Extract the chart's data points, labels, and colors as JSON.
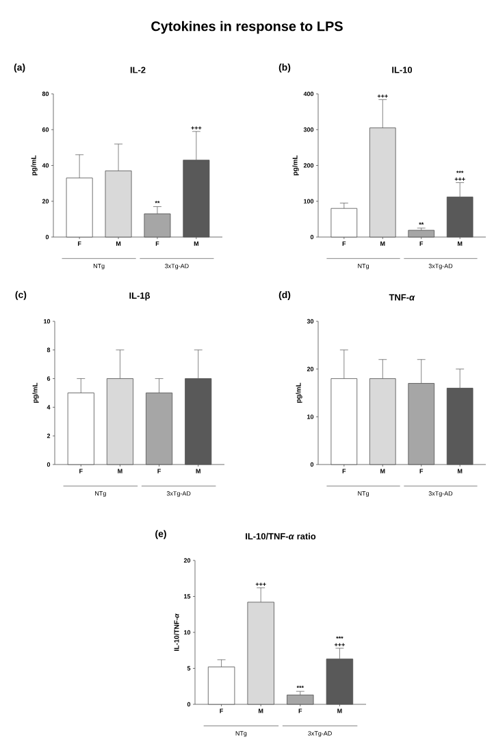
{
  "chart_data": [
    {
      "type": "other",
      "title": "Cytokines in response to LPS"
    },
    {
      "type": "bar",
      "title": "IL-2",
      "ylabel": "pg/mL",
      "categories": [
        "F",
        "M",
        "F",
        "M"
      ],
      "values": [
        33,
        37,
        13,
        43
      ],
      "errors": [
        13,
        15,
        4,
        16
      ],
      "colors": [
        "#ffffff",
        "#d9d9d9",
        "#a6a6a6",
        "#595959"
      ],
      "ylim": [
        0,
        80
      ],
      "yticks": [
        0,
        20,
        40,
        60,
        80
      ],
      "annotations": [
        "(a)",
        "NTg",
        "3xTg-AD",
        "**",
        "+++"
      ]
    },
    {
      "type": "bar",
      "title": "IL-10",
      "ylabel": "pg/mL",
      "categories": [
        "F",
        "M",
        "F",
        "M"
      ],
      "values": [
        80,
        305,
        19,
        112
      ],
      "errors": [
        15,
        79,
        6,
        40
      ],
      "colors": [
        "#ffffff",
        "#d9d9d9",
        "#a6a6a6",
        "#595959"
      ],
      "ylim": [
        0,
        400
      ],
      "yticks": [
        0,
        100,
        200,
        300,
        400
      ],
      "annotations": [
        "(b)",
        "NTg",
        "3xTg-AD",
        "+++",
        "**",
        "+++",
        "***"
      ]
    },
    {
      "type": "bar",
      "title": "IL-1β",
      "ylabel": "pg/mL",
      "categories": [
        "F",
        "M",
        "F",
        "M"
      ],
      "values": [
        5,
        6,
        5,
        6
      ],
      "errors": [
        1,
        2,
        1,
        2
      ],
      "colors": [
        "#ffffff",
        "#d9d9d9",
        "#a6a6a6",
        "#595959"
      ],
      "ylim": [
        0,
        10
      ],
      "yticks": [
        0,
        2,
        4,
        6,
        8,
        10
      ],
      "annotations": [
        "(c)",
        "NTg",
        "3xTg-AD"
      ]
    },
    {
      "type": "bar",
      "title": "TNF-*α*",
      "ylabel": "pg/mL",
      "categories": [
        "F",
        "M",
        "F",
        "M"
      ],
      "values": [
        18,
        18,
        17,
        16
      ],
      "errors": [
        6,
        4,
        5,
        4
      ],
      "colors": [
        "#ffffff",
        "#d9d9d9",
        "#a6a6a6",
        "#595959"
      ],
      "ylim": [
        0,
        30
      ],
      "yticks": [
        0,
        10,
        20,
        30
      ],
      "annotations": [
        "(d)",
        "NTg",
        "3xTg-AD"
      ]
    },
    {
      "type": "bar",
      "title": "IL-10/TNF-*α* ratio",
      "ylabel": "IL-10/TNF-*α*",
      "categories": [
        "F",
        "M",
        "F",
        "M"
      ],
      "values": [
        5.2,
        14.2,
        1.3,
        6.3
      ],
      "errors": [
        1.0,
        2.0,
        0.5,
        1.5
      ],
      "colors": [
        "#ffffff",
        "#d9d9d9",
        "#a6a6a6",
        "#595959"
      ],
      "ylim": [
        0,
        20
      ],
      "yticks": [
        0,
        5,
        10,
        15,
        20
      ],
      "annotations": [
        "(e)",
        "NTg",
        "3xTg-AD",
        "+++",
        "***",
        "+++",
        "***"
      ]
    }
  ]
}
